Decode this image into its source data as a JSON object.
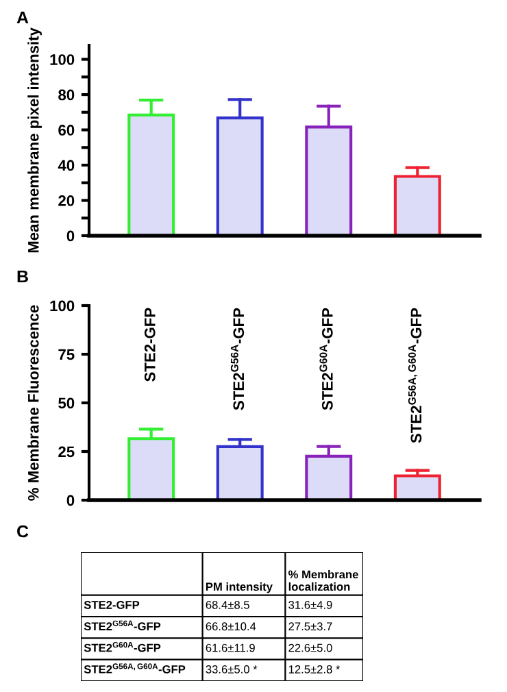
{
  "chart_data": [
    {
      "type": "bar",
      "title": "A",
      "ylabel": "Mean membrane pixel intensity",
      "categories": [
        null,
        null,
        null,
        null
      ],
      "values": [
        68.4,
        66.8,
        61.6,
        33.6
      ],
      "errors": [
        [
          68.4,
          76.9
        ],
        [
          66.8,
          77.2
        ],
        [
          61.6,
          73.5
        ],
        [
          33.6,
          38.6
        ]
      ],
      "colors": [
        "#33ee33",
        "#3333cc",
        "#8822bb",
        "#ee2233"
      ],
      "ylim": [
        0,
        108
      ],
      "yticks": [
        0,
        {
          "value": 10,
          "label": null
        },
        20,
        {
          "value": 30,
          "label": null
        },
        40,
        {
          "value": 50,
          "label": null
        },
        60,
        {
          "value": 70,
          "label": null
        },
        80,
        {
          "value": 90,
          "label": null
        },
        100
      ],
      "tick_labels": "y",
      "grid": false,
      "legend": false
    },
    {
      "type": "bar",
      "title": "B",
      "ylabel": "% Membrane Fluorescence",
      "categories": [
        "STE2-GFP",
        "STE2$^{G56A}$-GFP",
        "STE2$^{G60A}$-GFP",
        "STE2$^{G56A,G60A}$-GFP"
      ],
      "values": [
        31.6,
        27.5,
        22.6,
        12.5
      ],
      "errors": [
        [
          31.6,
          36.5
        ],
        [
          27.5,
          31.2
        ],
        [
          22.6,
          27.6
        ],
        [
          12.5,
          15.3
        ]
      ],
      "colors": [
        "#33ee33",
        "#3333cc",
        "#8822bb",
        "#ee2233"
      ],
      "ylim": [
        0,
        100
      ],
      "yticks": [
        0,
        25,
        50,
        75,
        100
      ],
      "grid": false,
      "legend": false
    },
    {
      "type": "other",
      "title": "C",
      "categories": [
        "PM intensity",
        "% Membrane\nlocalization"
      ],
      "y_categories": [
        "STE2-GFP",
        "STE2$^{G56A}$-GFP",
        "STE2$^{G60A}$-GFP",
        "STE2$^{G56A,G60A}$-GFP"
      ],
      "cell_labels": [
        [
          "68.4±8.5",
          "31.6±4.9"
        ],
        [
          "66.8±10.4",
          "27.5±3.7"
        ],
        [
          "61.6±11.9",
          "22.6±5.0"
        ],
        [
          "33.6±5.0 *",
          "12.5±2.8 *"
        ]
      ]
    }
  ]
}
